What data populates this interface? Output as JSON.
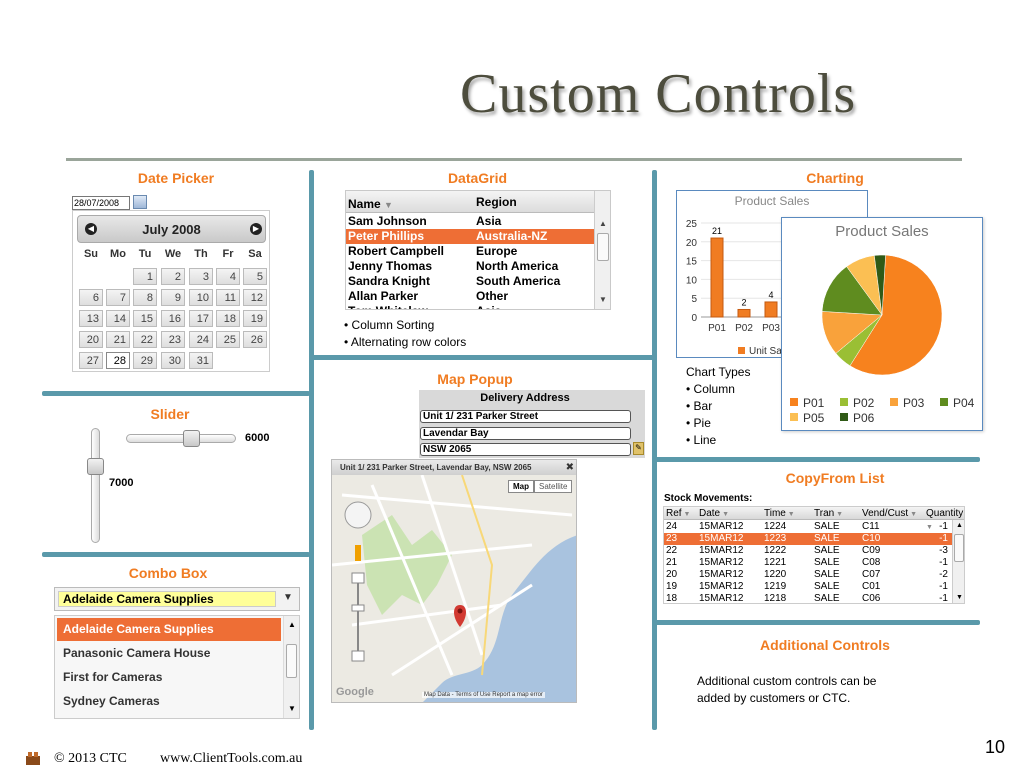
{
  "slide": {
    "title": "Custom Controls",
    "page_number": "10",
    "footer_copyright": "© 2013 CTC",
    "footer_url": "www.ClientTools.com.au"
  },
  "date_picker": {
    "title": "Date Picker",
    "input_value": "28/07/2008",
    "month_label": "July 2008",
    "weekdays": [
      "Su",
      "Mo",
      "Tu",
      "We",
      "Th",
      "Fr",
      "Sa"
    ],
    "days": [
      "1",
      "2",
      "3",
      "4",
      "5",
      "6",
      "7",
      "8",
      "9",
      "10",
      "11",
      "12",
      "13",
      "14",
      "15",
      "16",
      "17",
      "18",
      "19",
      "20",
      "21",
      "22",
      "23",
      "24",
      "25",
      "26",
      "27",
      "28",
      "29",
      "30",
      "31"
    ],
    "selected_day": "28"
  },
  "datagrid": {
    "title": "DataGrid",
    "columns": [
      "Name",
      "Region"
    ],
    "rows": [
      {
        "name": "Sam Johnson",
        "region": "Asia"
      },
      {
        "name": "Peter Phillips",
        "region": "Australia-NZ"
      },
      {
        "name": "Robert Campbell",
        "region": "Europe"
      },
      {
        "name": "Jenny Thomas",
        "region": "North America"
      },
      {
        "name": "Sandra Knight",
        "region": "South America"
      },
      {
        "name": "Allan Parker",
        "region": "Other"
      },
      {
        "name": "Tom Whitelaw",
        "region": "Asia"
      }
    ],
    "selected_row": 1,
    "features": [
      "• Column Sorting",
      "• Alternating row colors"
    ]
  },
  "charting": {
    "title": "Charting",
    "chart_types_label": "Chart Types",
    "chart_types": [
      "• Column",
      "• Bar",
      "• Pie",
      "• Line"
    ]
  },
  "chart_data": [
    {
      "type": "bar",
      "title": "Product Sales",
      "categories": [
        "P01",
        "P02",
        "P03"
      ],
      "values": [
        21,
        2,
        4
      ],
      "ylim": [
        0,
        25
      ],
      "yticks": [
        "0",
        "5",
        "10",
        "15",
        "20",
        "25"
      ],
      "legend_text": "Unit Sa",
      "color": "#f07c22"
    },
    {
      "type": "pie",
      "title": "Product Sales",
      "labels": [
        "P01",
        "P02",
        "P03",
        "P04",
        "P05",
        "P06"
      ],
      "values": [
        58,
        5,
        12,
        14,
        8,
        3
      ],
      "colors": [
        "#f7821e",
        "#9abf34",
        "#f9a23b",
        "#5f8c1f",
        "#fbbf53",
        "#2f5a16"
      ]
    }
  ],
  "map_popup": {
    "title": "Map Popup",
    "form_title": "Delivery Address",
    "fields": [
      "Unit 1/ 231 Parker Street",
      "Lavendar Bay",
      "NSW 2065"
    ],
    "map_title": "Unit 1/ 231 Parker Street, Lavendar Bay, NSW 2065",
    "map_buttons": [
      "Map",
      "Satellite"
    ],
    "map_footer": "Map Data - Terms of Use  Report a map error",
    "map_logo": "Google"
  },
  "slider": {
    "title": "Slider",
    "horizontal_value": "6000",
    "vertical_value": "7000",
    "horizontal_fraction": 0.6,
    "vertical_fraction": 0.3
  },
  "combo_box": {
    "title": "Combo Box",
    "value": "Adelaide Camera Supplies",
    "options": [
      "Adelaide Camera Supplies",
      "Panasonic Camera House",
      "First for Cameras",
      "Sydney Cameras"
    ],
    "selected_index": 0
  },
  "copyfrom": {
    "title": "CopyFrom List",
    "caption": "Stock Movements:",
    "columns": [
      "Ref",
      "Date",
      "Time",
      "Tran",
      "Vend/Cust",
      "Quantity"
    ],
    "rows": [
      {
        "ref": "24",
        "date": "15MAR12",
        "time": "1224",
        "tran": "SALE",
        "vend": "C11",
        "qty": "-1"
      },
      {
        "ref": "23",
        "date": "15MAR12",
        "time": "1223",
        "tran": "SALE",
        "vend": "C10",
        "qty": "-1"
      },
      {
        "ref": "22",
        "date": "15MAR12",
        "time": "1222",
        "tran": "SALE",
        "vend": "C09",
        "qty": "-3"
      },
      {
        "ref": "21",
        "date": "15MAR12",
        "time": "1221",
        "tran": "SALE",
        "vend": "C08",
        "qty": "-1"
      },
      {
        "ref": "20",
        "date": "15MAR12",
        "time": "1220",
        "tran": "SALE",
        "vend": "C07",
        "qty": "-2"
      },
      {
        "ref": "19",
        "date": "15MAR12",
        "time": "1219",
        "tran": "SALE",
        "vend": "C01",
        "qty": "-1"
      },
      {
        "ref": "18",
        "date": "15MAR12",
        "time": "1218",
        "tran": "SALE",
        "vend": "C06",
        "qty": "-1"
      }
    ],
    "selected_row": 1
  },
  "additional": {
    "title": "Additional Controls",
    "text_line1": "Additional custom controls can be",
    "text_line2": "added by customers or CTC."
  }
}
